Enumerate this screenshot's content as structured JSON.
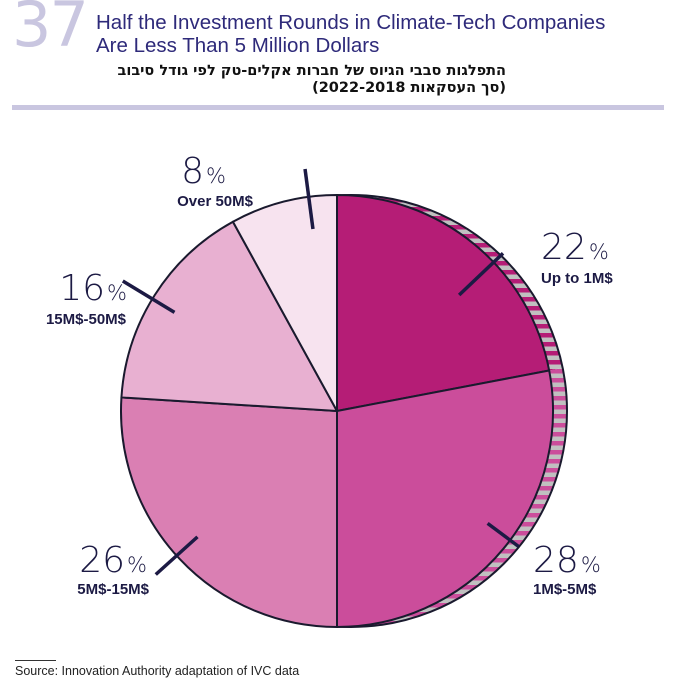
{
  "figure": {
    "number": "37",
    "title_lines": [
      "Half the Investment Rounds in Climate-Tech Companies",
      "Are Less Than 5 Million Dollars"
    ],
    "subtitle_lines": [
      "התפלגות סבבי הגיוס של חברות אקלים-טק לפי גודל סיבוב",
      "(סך העסקאות 2022-2018)"
    ],
    "source": "Source: Innovation Authority adaptation of IVC data"
  },
  "chart_data": {
    "type": "pie",
    "title": "Half the Investment Rounds in Climate-Tech Companies Are Less Than 5 Million Dollars",
    "unit": "%",
    "start": "12 o'clock, clockwise",
    "slices": [
      {
        "label": "Up to 1M$",
        "value": 22,
        "display": "22",
        "color": "#b51d76"
      },
      {
        "label": "1M$-5M$",
        "value": 28,
        "display": "28",
        "color": "#cb4d9b"
      },
      {
        "label": "5M$-15M$",
        "value": 26,
        "display": "26",
        "color": "#da7fb3"
      },
      {
        "label": "15M$-50M$",
        "value": 16,
        "display": "16",
        "color": "#e8b0d1"
      },
      {
        "label": "Over 50M$",
        "value": 8,
        "display": "8",
        "color": "#f7e3ef"
      }
    ],
    "highlight": {
      "description": "Striped outer band marking slices under 5M$",
      "slices": [
        "Up to 1M$",
        "1M$-5M$"
      ],
      "total": 50,
      "stripe_color": "#c0c0c0"
    },
    "outline_color": "#1a1a2e",
    "label_color": "#1c1a44"
  }
}
